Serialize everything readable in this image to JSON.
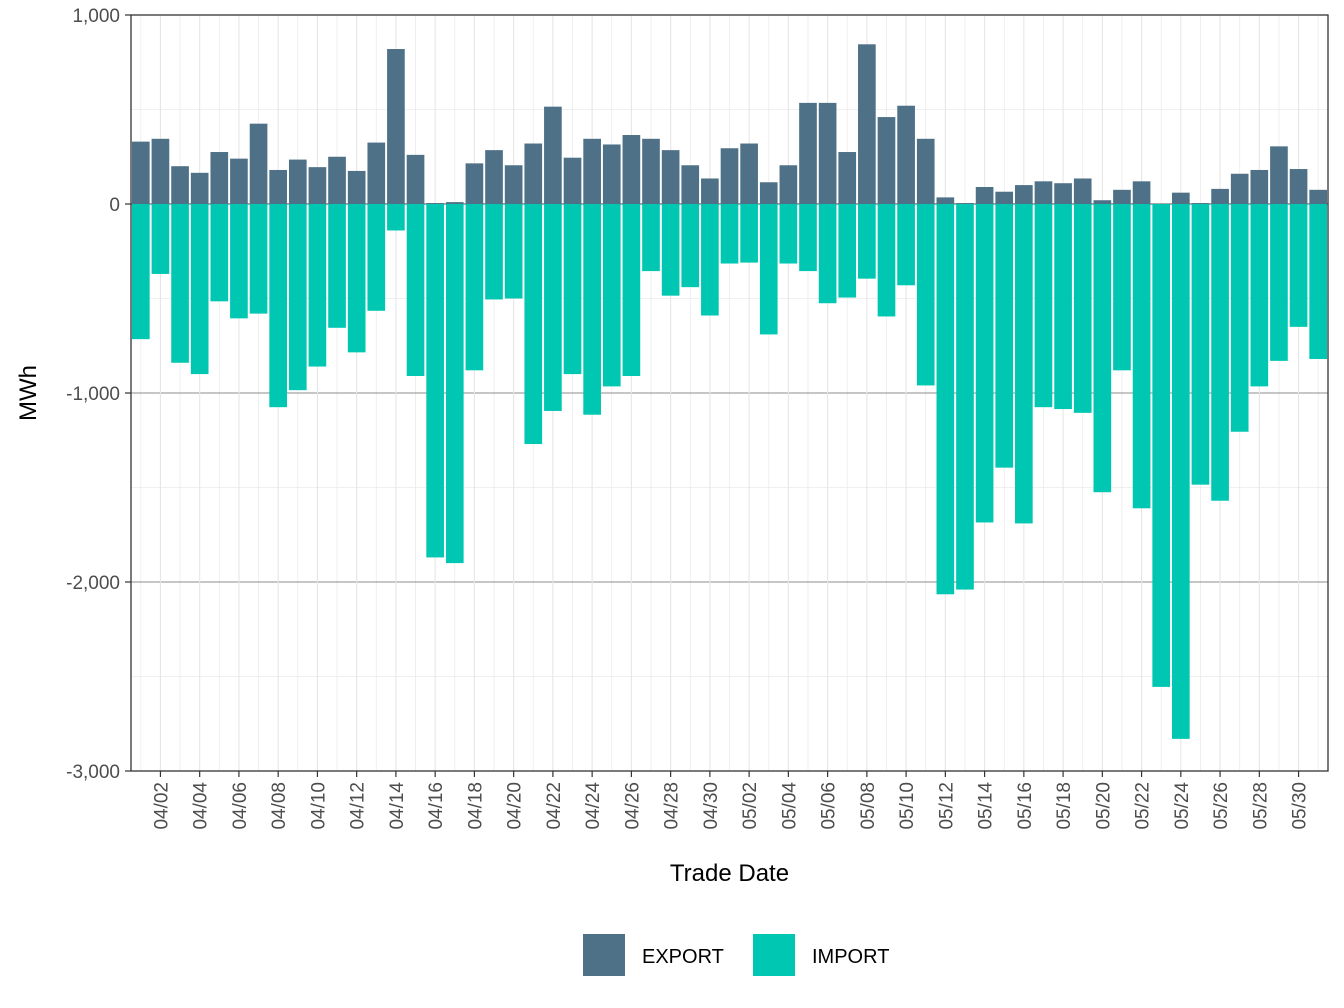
{
  "chart_data": {
    "type": "bar",
    "stacked": "diverging",
    "title": "",
    "xlabel": "Trade Date",
    "ylabel": "MWh",
    "ylim": [
      -3000,
      1000
    ],
    "y_ticks": [
      1000,
      0,
      -1000,
      -2000,
      -3000
    ],
    "y_tick_labels": [
      "1,000",
      "0",
      "-1,000",
      "-2,000",
      "-3,000"
    ],
    "grid": true,
    "legend_position": "bottom",
    "colors": {
      "EXPORT": "#4e7187",
      "IMPORT": "#00c7b2"
    },
    "x_tick_labels": [
      "04/02",
      "04/04",
      "04/06",
      "04/08",
      "04/10",
      "04/12",
      "04/14",
      "04/16",
      "04/18",
      "04/20",
      "04/22",
      "04/24",
      "04/26",
      "04/28",
      "04/30",
      "05/02",
      "05/04",
      "05/06",
      "05/08",
      "05/10",
      "05/12",
      "05/14",
      "05/16",
      "05/18",
      "05/20",
      "05/22",
      "05/24",
      "05/26",
      "05/28",
      "05/30"
    ],
    "categories": [
      "04/01",
      "04/02",
      "04/03",
      "04/04",
      "04/05",
      "04/06",
      "04/07",
      "04/08",
      "04/09",
      "04/10",
      "04/11",
      "04/12",
      "04/13",
      "04/14",
      "04/15",
      "04/16",
      "04/17",
      "04/18",
      "04/19",
      "04/20",
      "04/21",
      "04/22",
      "04/23",
      "04/24",
      "04/25",
      "04/26",
      "04/27",
      "04/28",
      "04/29",
      "04/30",
      "05/01",
      "05/02",
      "05/03",
      "05/04",
      "05/05",
      "05/06",
      "05/07",
      "05/08",
      "05/09",
      "05/10",
      "05/11",
      "05/12",
      "05/13",
      "05/14",
      "05/15",
      "05/16",
      "05/17",
      "05/18",
      "05/19",
      "05/20",
      "05/21",
      "05/22",
      "05/23",
      "05/24",
      "05/25",
      "05/26",
      "05/27",
      "05/28",
      "05/29",
      "05/30",
      "05/31"
    ],
    "series": [
      {
        "name": "EXPORT",
        "values": [
          330,
          345,
          200,
          165,
          275,
          240,
          425,
          180,
          235,
          195,
          250,
          175,
          325,
          820,
          260,
          5,
          10,
          215,
          285,
          205,
          320,
          515,
          245,
          345,
          315,
          365,
          345,
          285,
          205,
          135,
          295,
          320,
          115,
          205,
          535,
          535,
          275,
          845,
          460,
          520,
          345,
          35,
          5,
          90,
          65,
          100,
          120,
          110,
          135,
          20,
          75,
          120,
          0,
          60,
          5,
          80,
          160,
          180,
          305,
          185,
          75
        ]
      },
      {
        "name": "IMPORT",
        "values": [
          -715,
          -370,
          -840,
          -900,
          -515,
          -605,
          -580,
          -1075,
          -985,
          -860,
          -655,
          -785,
          -565,
          -140,
          -910,
          -1870,
          -1900,
          -880,
          -505,
          -500,
          -1270,
          -1095,
          -900,
          -1115,
          -965,
          -910,
          -355,
          -485,
          -440,
          -590,
          -315,
          -310,
          -690,
          -315,
          -355,
          -525,
          -495,
          -395,
          -595,
          -430,
          -960,
          -2065,
          -2040,
          -1685,
          -1395,
          -1690,
          -1075,
          -1085,
          -1105,
          -1525,
          -880,
          -1610,
          -2555,
          -2830,
          -1485,
          -1570,
          -1205,
          -965,
          -830,
          -650,
          -820
        ]
      }
    ]
  }
}
